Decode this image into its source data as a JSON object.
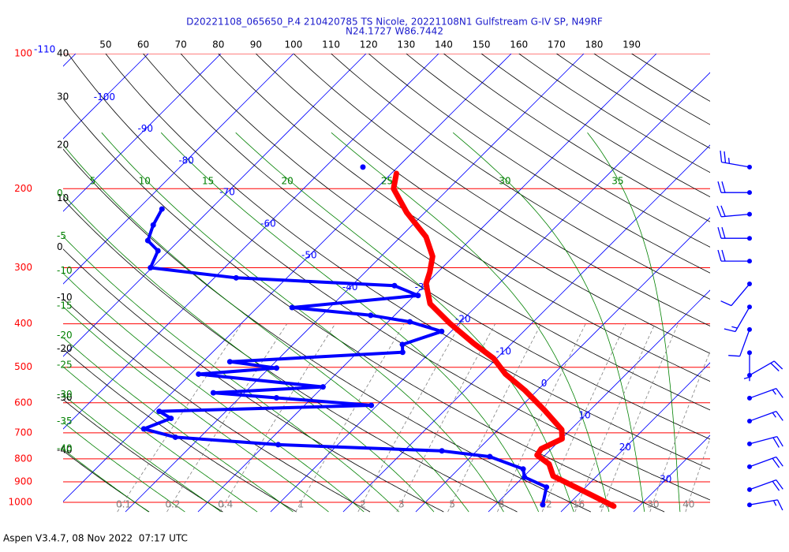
{
  "chart_data": {
    "type": "skew-t",
    "title": "D20221108_065650_P.4 210420785 TS Nicole, 20221108N1 Gulfstream G-IV SP, N49RF",
    "subtitle": "N24.1727 W86.7442",
    "footer": "Aspen V3.4.7, 08 Nov 2022  07:17 UTC",
    "ylim": [
      100,
      1000
    ],
    "log_y": true,
    "grid": true,
    "yticks": [
      100,
      200,
      300,
      400,
      500,
      600,
      700,
      800,
      900,
      1000
    ],
    "ytick_color": "#ff0000",
    "isotherm_labels": [
      -110,
      -100,
      -90,
      -80,
      -70,
      -60,
      -50,
      -40,
      -30,
      -20,
      -10,
      0,
      10,
      20,
      30
    ],
    "isotherm_color": "#0000ff",
    "dry_adiabat_labels_left": [
      40,
      30,
      20,
      10,
      0,
      -10,
      -20,
      -30,
      -40
    ],
    "dry_adiabat_labels_top": [
      50,
      60,
      70,
      80,
      90,
      100,
      110,
      120,
      130,
      140,
      150,
      160,
      170,
      180,
      190
    ],
    "dry_adiabat_color": "#000000",
    "moist_adiabat_labels_left": [
      0,
      -5,
      -10,
      -15,
      -20,
      -25,
      -30,
      -35,
      -40
    ],
    "moist_adiabat_labels_top": [
      5,
      10,
      15,
      20,
      25,
      30,
      35
    ],
    "moist_adiabat_color": "#008000",
    "mixing_ratio_labels": [
      0.1,
      0.2,
      0.4,
      1,
      2,
      3,
      5,
      8,
      12,
      16,
      20,
      30,
      40
    ],
    "mixing_ratio_color": "#808080",
    "series": [
      {
        "color": "#ff0000",
        "pressure": [
          185,
          200,
          226,
          256,
          283,
          307,
          326,
          361,
          399,
          442,
          478,
          518,
          563,
          623,
          689,
          722,
          760,
          785,
          822,
          874,
          947,
          1020
        ],
        "values": [
          -49.3,
          -47.6,
          -42.5,
          -36.5,
          -32.9,
          -31.1,
          -30.0,
          -26.7,
          -21.3,
          -15.3,
          -10.4,
          -6.6,
          -1.7,
          3.7,
          8.8,
          10.1,
          8.6,
          8.9,
          11.8,
          14.0,
          20.5,
          26.5
        ]
      },
      {
        "color": "#0000ff",
        "pressure": [
          179,
          null,
          222,
          241,
          261,
          275,
          300,
          316,
          329,
          346,
          368,
          383,
          396,
          416,
          445,
          463,
          486,
          502,
          518,
          553,
          570,
          585,
          608,
          627,
          650,
          686,
          716,
          744,
          768,
          791,
          843,
          879,
          925,
          1012
        ],
        "values": [
          -54.8,
          null,
          -76.7,
          -75.7,
          -74.3,
          -71.5,
          -70.2,
          -57.0,
          -34.1,
          -29.5,
          -45.2,
          -33.3,
          -27.0,
          -21.3,
          -24.9,
          -23.8,
          -46.3,
          -39.0,
          -48.9,
          -30.0,
          -44.3,
          -34.9,
          -20.8,
          -49.2,
          -46.6,
          -48.9,
          -43.4,
          -28.2,
          -4.8,
          2.6,
          8.9,
          10.2,
          14.6,
          16.5
        ]
      }
    ],
    "winds": {
      "color": "#0000ff",
      "pressure": [
        179,
        204,
        228,
        258,
        290,
        326,
        367,
        412,
        464,
        521,
        586,
        659,
        741,
        833,
        937,
        1013
      ],
      "direction": [
        280,
        270,
        265,
        270,
        270,
        220,
        210,
        200,
        180,
        60,
        70,
        70,
        75,
        70,
        70,
        80
      ],
      "speed": [
        25,
        20,
        20,
        20,
        20,
        10,
        15,
        10,
        5,
        20,
        15,
        15,
        20,
        20,
        20,
        15
      ]
    }
  }
}
